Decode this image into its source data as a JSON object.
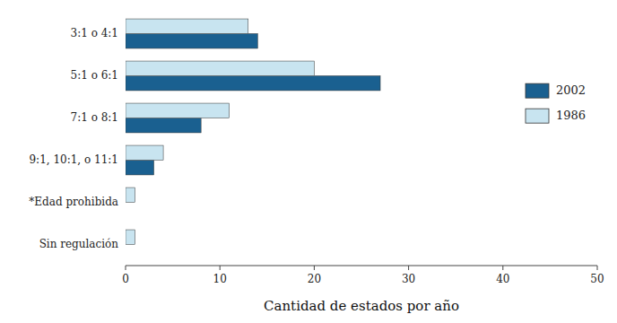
{
  "chart_data": {
    "type": "bar",
    "orientation": "horizontal",
    "xlabel": "Cantidad de estados por año",
    "categories": [
      "3:1 o 4:1",
      "5:1 o 6:1",
      "7:1 o 8:1",
      "9:1, 10:1, o 11:1",
      "*Edad prohibida",
      "Sin regulación"
    ],
    "series": [
      {
        "name": "2002",
        "color": "#1a6090",
        "values": [
          14,
          27,
          8,
          3,
          0,
          0
        ]
      },
      {
        "name": "1986",
        "color": "#c8e4f0",
        "values": [
          13,
          20,
          11,
          4,
          1,
          1
        ]
      }
    ],
    "xlim": [
      0,
      50
    ],
    "xticks": [
      0,
      10,
      20,
      30,
      40,
      50
    ],
    "grid": false,
    "legend": "right"
  }
}
